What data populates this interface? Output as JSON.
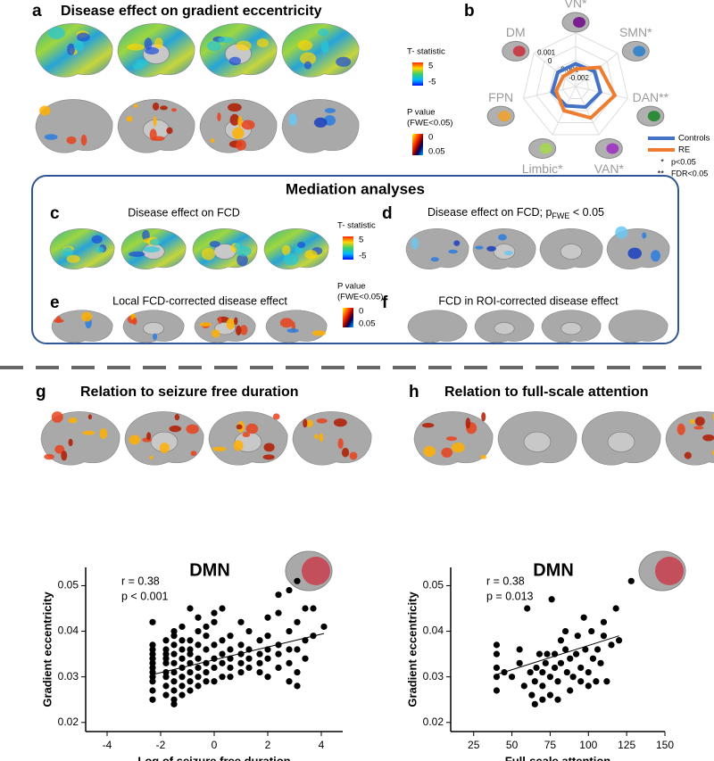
{
  "panels": {
    "a": {
      "label": "a",
      "title": "Disease effect on gradient  eccentricity",
      "colorbars": [
        {
          "title": [
            "T- statistic"
          ],
          "ticks": [
            "5",
            "-5"
          ]
        },
        {
          "title": [
            "P value",
            "(FWE<0.05)"
          ],
          "ticks": [
            "0",
            "0.05"
          ]
        }
      ]
    },
    "b": {
      "label": "b"
    },
    "mediation": {
      "title": "Mediation  analyses",
      "colorbars": [
        {
          "title": [
            "T- statistic"
          ],
          "ticks": [
            "5",
            "-5"
          ]
        },
        {
          "title": [
            "P value",
            "(FWE<0.05)"
          ],
          "ticks": [
            "0",
            "0.05"
          ]
        }
      ]
    },
    "c": {
      "label": "c",
      "title": "Disease effect on FCD"
    },
    "d": {
      "label": "d",
      "title": {
        "prefix": "Disease effect on FCD; p",
        "subscript": "FWE",
        "suffix": " < 0.05"
      }
    },
    "e": {
      "label": "e",
      "title": "Local FCD-corrected disease effect"
    },
    "f": {
      "label": "f",
      "title": "FCD in ROI-corrected disease effect"
    },
    "g": {
      "label": "g",
      "title": "Relation to seizure free duration"
    },
    "h": {
      "label": "h",
      "title": "Relation to full-scale attention"
    }
  },
  "chart_data": [
    {
      "type": "radar",
      "axes": [
        "VN*",
        "SMN*",
        "DAN**",
        "VAN*",
        "Limbic*",
        "FPN",
        "DM"
      ],
      "rlim": [
        -0.003,
        0.001
      ],
      "rticks": [
        -0.002,
        -0.001,
        0,
        0.001
      ],
      "series": [
        {
          "name": "Controls",
          "color": "#4472c4",
          "values": [
            -0.0013,
            -0.0012,
            -0.0011,
            -0.0013,
            -0.0014,
            -0.0012,
            -0.0013
          ]
        },
        {
          "name": "RE",
          "color": "#ed7d31",
          "values": [
            -0.0017,
            -0.0007,
            0.0,
            -0.0004,
            -0.001,
            -0.0015,
            -0.0018
          ]
        }
      ],
      "notes": [
        {
          "symbol": "*",
          "text": "p<0.05"
        },
        {
          "symbol": "**",
          "text": "FDR<0.05"
        }
      ]
    },
    {
      "type": "scatter",
      "title": "DMN",
      "annotations": [
        "r = 0.38",
        "p  < 0.001"
      ],
      "x_label": "Log of seizure free duration",
      "y_label": "Gradient eccentricity",
      "xlim": [
        -4.8,
        4.8
      ],
      "ylim": [
        0.018,
        0.054
      ],
      "xticks": [
        -4,
        -2,
        0,
        2,
        4
      ],
      "yticks": [
        0.02,
        0.03,
        0.04,
        0.05
      ],
      "color": "#000000",
      "x": [
        -2.3,
        -2.3,
        -2.3,
        -2.3,
        -2.3,
        -2.3,
        -2.3,
        -2.3,
        -2.3,
        -2.3,
        -2.3,
        -2.3,
        -1.8,
        -1.8,
        -1.8,
        -1.8,
        -1.8,
        -1.8,
        -1.8,
        -1.8,
        -1.8,
        -1.5,
        -1.5,
        -1.5,
        -1.5,
        -1.5,
        -1.5,
        -1.5,
        -1.5,
        -1.5,
        -1.5,
        -1.2,
        -1.2,
        -1.2,
        -1.2,
        -1.2,
        -1.2,
        -1.2,
        -1.2,
        -0.9,
        -0.9,
        -0.9,
        -0.9,
        -0.9,
        -0.9,
        -0.9,
        -0.9,
        -0.6,
        -0.6,
        -0.6,
        -0.6,
        -0.6,
        -0.6,
        -0.6,
        -0.3,
        -0.3,
        -0.3,
        -0.3,
        -0.3,
        -0.3,
        0,
        0,
        0,
        0,
        0,
        0,
        0.3,
        0.3,
        0.3,
        0.3,
        0.3,
        0.6,
        0.6,
        0.6,
        0.6,
        0.6,
        1.0,
        1.0,
        1.0,
        1.0,
        1.0,
        1.3,
        1.3,
        1.3,
        1.3,
        1.7,
        1.7,
        1.7,
        1.7,
        2.0,
        2.0,
        2.0,
        2.0,
        2.0,
        2.4,
        2.4,
        2.4,
        2.4,
        2.4,
        2.8,
        2.8,
        2.8,
        2.8,
        2.8,
        3.1,
        3.1,
        3.1,
        3.1,
        3.1,
        3.4,
        3.4,
        3.4,
        3.7,
        3.7,
        4.1
      ],
      "values": [
        0.025,
        0.027,
        0.029,
        0.03,
        0.031,
        0.032,
        0.033,
        0.034,
        0.035,
        0.036,
        0.037,
        0.042,
        0.026,
        0.028,
        0.03,
        0.031,
        0.033,
        0.034,
        0.035,
        0.036,
        0.038,
        0.024,
        0.025,
        0.027,
        0.029,
        0.031,
        0.033,
        0.035,
        0.037,
        0.039,
        0.04,
        0.026,
        0.028,
        0.03,
        0.032,
        0.034,
        0.036,
        0.038,
        0.041,
        0.027,
        0.029,
        0.031,
        0.033,
        0.035,
        0.036,
        0.038,
        0.045,
        0.028,
        0.03,
        0.032,
        0.034,
        0.037,
        0.04,
        0.043,
        0.029,
        0.031,
        0.033,
        0.036,
        0.039,
        0.041,
        0.029,
        0.032,
        0.034,
        0.037,
        0.042,
        0.044,
        0.03,
        0.033,
        0.035,
        0.038,
        0.045,
        0.03,
        0.032,
        0.034,
        0.036,
        0.039,
        0.031,
        0.033,
        0.035,
        0.037,
        0.042,
        0.032,
        0.034,
        0.036,
        0.04,
        0.031,
        0.033,
        0.035,
        0.038,
        0.03,
        0.034,
        0.036,
        0.039,
        0.043,
        0.032,
        0.035,
        0.037,
        0.044,
        0.048,
        0.029,
        0.033,
        0.036,
        0.04,
        0.049,
        0.028,
        0.031,
        0.036,
        0.042,
        0.051,
        0.034,
        0.038,
        0.045,
        0.039,
        0.045,
        0.041
      ],
      "trend_line": {
        "x": [
          -2.3,
          4.1
        ],
        "y": [
          0.0305,
          0.0395
        ]
      }
    },
    {
      "type": "scatter",
      "title": "DMN",
      "annotations": [
        "r = 0.38",
        "p = 0.013"
      ],
      "x_label": "Full-scale attention",
      "y_label": "Gradient eccentricity",
      "xlim": [
        10,
        150
      ],
      "ylim": [
        0.018,
        0.054
      ],
      "xticks": [
        25,
        50,
        75,
        100,
        125,
        150
      ],
      "yticks": [
        0.02,
        0.03,
        0.04,
        0.05
      ],
      "color": "#000000",
      "x": [
        40,
        40,
        40,
        40,
        40,
        45,
        50,
        55,
        55,
        58,
        60,
        62,
        63,
        65,
        65,
        66,
        68,
        70,
        70,
        70,
        72,
        73,
        75,
        75,
        76,
        78,
        78,
        80,
        80,
        82,
        82,
        85,
        85,
        86,
        88,
        88,
        90,
        92,
        93,
        95,
        95,
        97,
        98,
        100,
        100,
        102,
        103,
        105,
        106,
        108,
        110,
        110,
        112,
        115,
        118,
        120,
        128
      ],
      "values": [
        0.027,
        0.03,
        0.032,
        0.035,
        0.037,
        0.031,
        0.03,
        0.033,
        0.036,
        0.028,
        0.045,
        0.031,
        0.026,
        0.024,
        0.029,
        0.032,
        0.035,
        0.025,
        0.028,
        0.031,
        0.033,
        0.035,
        0.026,
        0.03,
        0.047,
        0.032,
        0.035,
        0.025,
        0.029,
        0.033,
        0.038,
        0.036,
        0.04,
        0.031,
        0.027,
        0.034,
        0.03,
        0.035,
        0.039,
        0.029,
        0.032,
        0.043,
        0.036,
        0.028,
        0.031,
        0.04,
        0.034,
        0.029,
        0.036,
        0.033,
        0.039,
        0.042,
        0.029,
        0.037,
        0.045,
        0.038,
        0.051
      ],
      "trend_line": {
        "x": [
          40,
          120
        ],
        "y": [
          0.0305,
          0.039
        ]
      }
    }
  ]
}
